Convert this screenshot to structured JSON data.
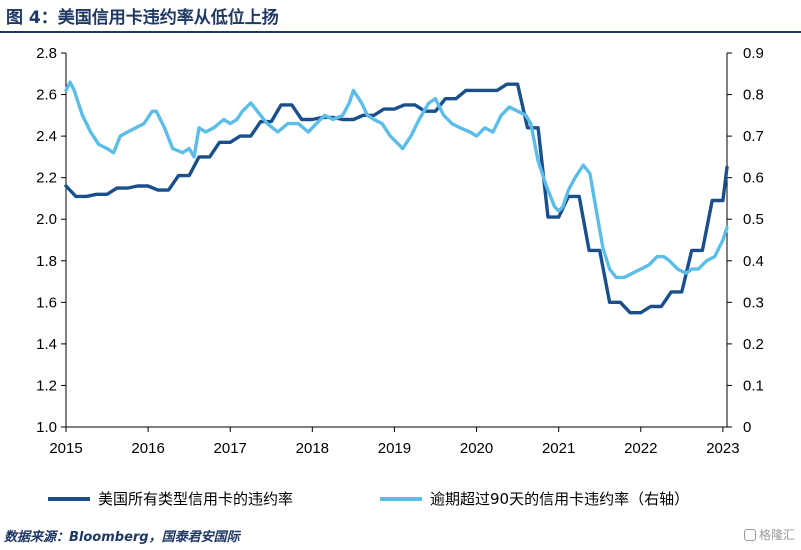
{
  "figure": {
    "title": "图 4：美国信用卡违约率从低位上扬",
    "source": "数据来源：Bloomberg，国泰君安国际",
    "watermark": "格隆汇"
  },
  "chart_data": {
    "type": "line",
    "title": "",
    "xlabel": "",
    "ylabel": "",
    "x_ticks": [
      "2015",
      "2016",
      "2017",
      "2018",
      "2019",
      "2020",
      "2021",
      "2022",
      "2023"
    ],
    "x_range": [
      2015,
      2023.05
    ],
    "left_axis": {
      "range": [
        1.0,
        2.8
      ],
      "step": 0.2,
      "ticks": [
        "1.0",
        "1.2",
        "1.4",
        "1.6",
        "1.8",
        "2.0",
        "2.2",
        "2.4",
        "2.6",
        "2.8"
      ]
    },
    "right_axis": {
      "range": [
        0,
        0.9
      ],
      "step": 0.1,
      "ticks": [
        "0",
        "0.1",
        "0.2",
        "0.3",
        "0.4",
        "0.5",
        "0.6",
        "0.7",
        "0.8",
        "0.9"
      ]
    },
    "grid": false,
    "legend_position": "bottom",
    "series": [
      {
        "name": "美国所有类型信用卡的违约率",
        "axis": "left",
        "color": "#1a4f8b",
        "x": [
          2015.0,
          2015.12,
          2015.25,
          2015.37,
          2015.5,
          2015.62,
          2015.75,
          2015.87,
          2016.0,
          2016.12,
          2016.25,
          2016.37,
          2016.5,
          2016.62,
          2016.75,
          2016.87,
          2017.0,
          2017.12,
          2017.25,
          2017.37,
          2017.5,
          2017.62,
          2017.75,
          2017.87,
          2018.0,
          2018.12,
          2018.25,
          2018.37,
          2018.5,
          2018.62,
          2018.75,
          2018.87,
          2019.0,
          2019.12,
          2019.25,
          2019.37,
          2019.5,
          2019.62,
          2019.75,
          2019.87,
          2020.0,
          2020.12,
          2020.25,
          2020.37,
          2020.5,
          2020.62,
          2020.75,
          2020.87,
          2021.0,
          2021.12,
          2021.25,
          2021.37,
          2021.5,
          2021.62,
          2021.75,
          2021.87,
          2022.0,
          2022.12,
          2022.25,
          2022.37,
          2022.5,
          2022.62,
          2022.75,
          2022.87,
          2023.0,
          2023.05
        ],
        "values": [
          2.16,
          2.11,
          2.11,
          2.12,
          2.12,
          2.15,
          2.15,
          2.16,
          2.16,
          2.14,
          2.14,
          2.21,
          2.21,
          2.3,
          2.3,
          2.37,
          2.37,
          2.4,
          2.4,
          2.47,
          2.47,
          2.55,
          2.55,
          2.48,
          2.48,
          2.49,
          2.49,
          2.48,
          2.48,
          2.5,
          2.5,
          2.53,
          2.53,
          2.55,
          2.55,
          2.52,
          2.52,
          2.58,
          2.58,
          2.62,
          2.62,
          2.62,
          2.62,
          2.65,
          2.65,
          2.44,
          2.44,
          2.01,
          2.01,
          2.11,
          2.11,
          1.85,
          1.85,
          1.6,
          1.6,
          1.55,
          1.55,
          1.58,
          1.58,
          1.65,
          1.65,
          1.85,
          1.85,
          2.09,
          2.09,
          2.25
        ]
      },
      {
        "name": "逾期超过90天的信用卡违约率（右轴）",
        "axis": "right",
        "color": "#5bbde8",
        "x": [
          2015.0,
          2015.05,
          2015.1,
          2015.2,
          2015.3,
          2015.4,
          2015.5,
          2015.58,
          2015.66,
          2015.75,
          2015.85,
          2015.95,
          2016.05,
          2016.1,
          2016.2,
          2016.3,
          2016.42,
          2016.5,
          2016.56,
          2016.62,
          2016.7,
          2016.8,
          2016.92,
          2017.0,
          2017.08,
          2017.15,
          2017.25,
          2017.33,
          2017.45,
          2017.58,
          2017.7,
          2017.83,
          2017.95,
          2018.05,
          2018.15,
          2018.25,
          2018.37,
          2018.45,
          2018.5,
          2018.6,
          2018.67,
          2018.75,
          2018.85,
          2018.95,
          2019.05,
          2019.1,
          2019.2,
          2019.3,
          2019.42,
          2019.5,
          2019.6,
          2019.7,
          2019.8,
          2019.92,
          2020.0,
          2020.1,
          2020.2,
          2020.3,
          2020.4,
          2020.5,
          2020.6,
          2020.66,
          2020.75,
          2020.85,
          2020.95,
          2021.0,
          2021.05,
          2021.12,
          2021.2,
          2021.3,
          2021.38,
          2021.46,
          2021.54,
          2021.62,
          2021.7,
          2021.8,
          2021.9,
          2022.0,
          2022.1,
          2022.2,
          2022.28,
          2022.35,
          2022.45,
          2022.55,
          2022.62,
          2022.7,
          2022.8,
          2022.9,
          2023.0,
          2023.05
        ],
        "values": [
          0.81,
          0.83,
          0.81,
          0.75,
          0.71,
          0.68,
          0.67,
          0.66,
          0.7,
          0.71,
          0.72,
          0.73,
          0.76,
          0.76,
          0.72,
          0.67,
          0.66,
          0.67,
          0.65,
          0.72,
          0.71,
          0.72,
          0.74,
          0.73,
          0.74,
          0.76,
          0.78,
          0.76,
          0.73,
          0.71,
          0.73,
          0.73,
          0.71,
          0.73,
          0.75,
          0.74,
          0.75,
          0.78,
          0.81,
          0.78,
          0.75,
          0.74,
          0.73,
          0.7,
          0.68,
          0.67,
          0.7,
          0.74,
          0.78,
          0.79,
          0.75,
          0.73,
          0.72,
          0.71,
          0.7,
          0.72,
          0.71,
          0.75,
          0.77,
          0.76,
          0.75,
          0.73,
          0.64,
          0.58,
          0.53,
          0.52,
          0.53,
          0.57,
          0.6,
          0.63,
          0.61,
          0.52,
          0.43,
          0.38,
          0.36,
          0.36,
          0.37,
          0.38,
          0.39,
          0.41,
          0.41,
          0.4,
          0.38,
          0.37,
          0.38,
          0.38,
          0.4,
          0.41,
          0.45,
          0.48
        ]
      }
    ]
  }
}
